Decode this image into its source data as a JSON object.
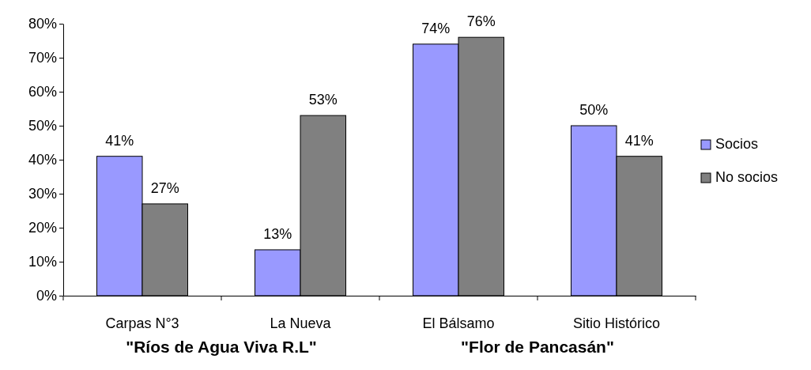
{
  "chart_data": {
    "type": "bar",
    "categories": [
      "Carpas N°3",
      "La Nueva",
      "El Bálsamo",
      "Sitio Histórico"
    ],
    "series": [
      {
        "name": "Socios",
        "color": "#9999ff",
        "values": [
          41,
          13.5,
          74,
          50
        ],
        "value_labels": [
          "41%",
          "13%",
          "74%",
          "50%"
        ]
      },
      {
        "name": "No socios",
        "color": "#808080",
        "values": [
          27,
          53,
          76,
          41
        ],
        "value_labels": [
          "27%",
          "53%",
          "76%",
          "41%"
        ]
      }
    ],
    "ylim": [
      0,
      80
    ],
    "yticks": [
      {
        "value": 0,
        "label": "0%"
      },
      {
        "value": 10,
        "label": "10%"
      },
      {
        "value": 20,
        "label": "20%"
      },
      {
        "value": 30,
        "label": "30%"
      },
      {
        "value": 40,
        "label": "40%"
      },
      {
        "value": 50,
        "label": "50%"
      },
      {
        "value": 60,
        "label": "60%"
      },
      {
        "value": 70,
        "label": "70%"
      },
      {
        "value": 80,
        "label": "80%"
      }
    ],
    "grid": false,
    "legend": "right",
    "annotations": [
      "\"Ríos de Agua Viva R.L\"",
      "\"Flor de Pancasán\""
    ]
  }
}
